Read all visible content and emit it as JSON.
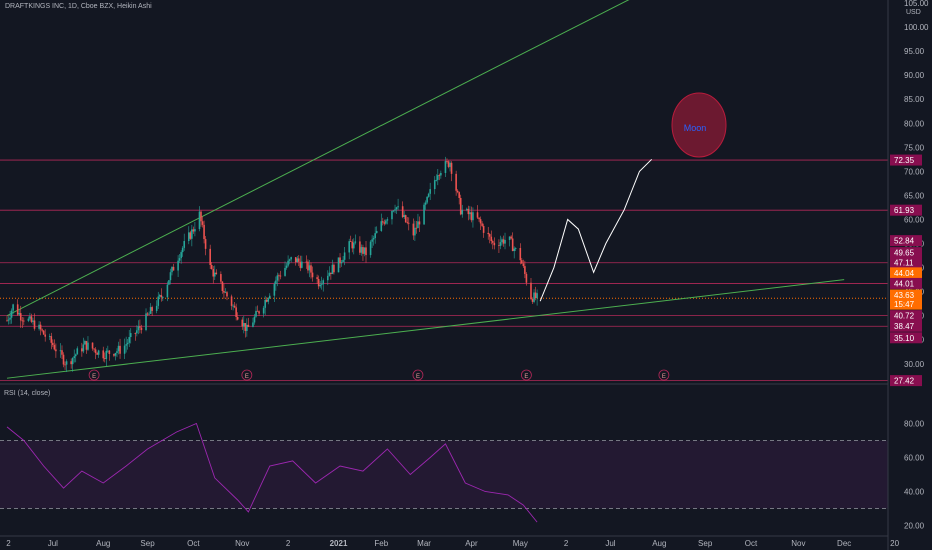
{
  "header": {
    "title": "DRAFTKINGS INC, 1D, Cboe BZX, Heikin Ashi",
    "currency": "USD",
    "rsi_title": "RSI (14, close)"
  },
  "colors": {
    "background": "#131722",
    "up": "#26a69a",
    "down": "#ef5350",
    "trendline": "#4caf50",
    "level_line": "#b22858",
    "rsi": "#9c27b0",
    "moon": "#b71c3c",
    "moon_text": "#2962ff",
    "current_price": "#ff6d00"
  },
  "annotation": {
    "moon_label": "Moon"
  },
  "earnings_markers": [
    "E",
    "E",
    "E",
    "E",
    "E"
  ],
  "chart_data": [
    {
      "type": "candlestick",
      "title": "DRAFTKINGS INC, 1D, Cboe BZX, Heikin Ashi",
      "y_axis": {
        "range": [
          26,
          105
        ],
        "ticks": [
          "105.00",
          "100.00",
          "95.00",
          "90.00",
          "85.00",
          "80.00",
          "75.00",
          "70.00",
          "65.00",
          "60.00",
          "55.00",
          "50.00",
          "45.00",
          "40.00",
          "35.00",
          "30.00"
        ]
      },
      "x_axis": {
        "range": [
          "2020-06-01",
          "2021-12-31"
        ],
        "ticks": [
          {
            "date": "2020-06-02",
            "label": "2"
          },
          {
            "date": "2020-07-01",
            "label": "Jul"
          },
          {
            "date": "2020-08-03",
            "label": "Aug"
          },
          {
            "date": "2020-09-01",
            "label": "Sep"
          },
          {
            "date": "2020-10-01",
            "label": "Oct"
          },
          {
            "date": "2020-11-02",
            "label": "Nov"
          },
          {
            "date": "2020-12-02",
            "label": "2"
          },
          {
            "date": "2021-01-04",
            "label": "2021"
          },
          {
            "date": "2021-02-01",
            "label": "Feb"
          },
          {
            "date": "2021-03-01",
            "label": "Mar"
          },
          {
            "date": "2021-04-01",
            "label": "Apr"
          },
          {
            "date": "2021-05-03",
            "label": "May"
          },
          {
            "date": "2021-06-02",
            "label": "2"
          },
          {
            "date": "2021-07-01",
            "label": "Jul"
          },
          {
            "date": "2021-08-02",
            "label": "Aug"
          },
          {
            "date": "2021-09-01",
            "label": "Sep"
          },
          {
            "date": "2021-10-01",
            "label": "Oct"
          },
          {
            "date": "2021-11-01",
            "label": "Nov"
          },
          {
            "date": "2021-12-01",
            "label": "Dec"
          },
          {
            "date": "2022-01-03",
            "label": "20"
          }
        ]
      },
      "price_path": [
        {
          "date": "2020-06-01",
          "price": 39
        },
        {
          "date": "2020-06-05",
          "price": 42
        },
        {
          "date": "2020-06-10",
          "price": 40
        },
        {
          "date": "2020-06-20",
          "price": 38
        },
        {
          "date": "2020-07-01",
          "price": 34
        },
        {
          "date": "2020-07-10",
          "price": 30
        },
        {
          "date": "2020-07-22",
          "price": 34
        },
        {
          "date": "2020-08-03",
          "price": 32
        },
        {
          "date": "2020-08-15",
          "price": 33
        },
        {
          "date": "2020-08-28",
          "price": 38
        },
        {
          "date": "2020-09-10",
          "price": 44
        },
        {
          "date": "2020-09-22",
          "price": 53
        },
        {
          "date": "2020-10-01",
          "price": 58
        },
        {
          "date": "2020-10-05",
          "price": 61
        },
        {
          "date": "2020-10-12",
          "price": 50
        },
        {
          "date": "2020-10-25",
          "price": 43
        },
        {
          "date": "2020-11-05",
          "price": 37
        },
        {
          "date": "2020-11-15",
          "price": 42
        },
        {
          "date": "2020-11-25",
          "price": 48
        },
        {
          "date": "2020-12-05",
          "price": 52
        },
        {
          "date": "2020-12-15",
          "price": 50
        },
        {
          "date": "2020-12-22",
          "price": 47
        },
        {
          "date": "2021-01-04",
          "price": 51
        },
        {
          "date": "2021-01-12",
          "price": 55
        },
        {
          "date": "2021-01-22",
          "price": 53
        },
        {
          "date": "2021-02-01",
          "price": 59
        },
        {
          "date": "2021-02-10",
          "price": 63
        },
        {
          "date": "2021-02-22",
          "price": 57
        },
        {
          "date": "2021-03-01",
          "price": 62
        },
        {
          "date": "2021-03-10",
          "price": 70
        },
        {
          "date": "2021-03-18",
          "price": 72
        },
        {
          "date": "2021-03-25",
          "price": 62
        },
        {
          "date": "2021-04-05",
          "price": 60
        },
        {
          "date": "2021-04-15",
          "price": 55
        },
        {
          "date": "2021-04-25",
          "price": 56
        },
        {
          "date": "2021-05-03",
          "price": 52
        },
        {
          "date": "2021-05-10",
          "price": 44
        },
        {
          "date": "2021-05-14",
          "price": 43.6
        }
      ],
      "rsi": {
        "title": "RSI (14, close)",
        "range": [
          15,
          95
        ],
        "ticks": [
          "80.00",
          "60.00",
          "40.00",
          "20.00"
        ],
        "upper_band": 70,
        "lower_band": 30,
        "values": [
          {
            "date": "2020-06-01",
            "value": 78
          },
          {
            "date": "2020-06-12",
            "value": 70
          },
          {
            "date": "2020-06-25",
            "value": 55
          },
          {
            "date": "2020-07-08",
            "value": 42
          },
          {
            "date": "2020-07-20",
            "value": 52
          },
          {
            "date": "2020-08-03",
            "value": 45
          },
          {
            "date": "2020-08-18",
            "value": 55
          },
          {
            "date": "2020-09-01",
            "value": 65
          },
          {
            "date": "2020-09-20",
            "value": 75
          },
          {
            "date": "2020-10-03",
            "value": 80
          },
          {
            "date": "2020-10-15",
            "value": 48
          },
          {
            "date": "2020-10-30",
            "value": 35
          },
          {
            "date": "2020-11-06",
            "value": 28
          },
          {
            "date": "2020-11-20",
            "value": 55
          },
          {
            "date": "2020-12-05",
            "value": 58
          },
          {
            "date": "2020-12-20",
            "value": 45
          },
          {
            "date": "2021-01-05",
            "value": 55
          },
          {
            "date": "2021-01-20",
            "value": 52
          },
          {
            "date": "2021-02-05",
            "value": 65
          },
          {
            "date": "2021-02-20",
            "value": 50
          },
          {
            "date": "2021-03-05",
            "value": 60
          },
          {
            "date": "2021-03-15",
            "value": 68
          },
          {
            "date": "2021-03-28",
            "value": 45
          },
          {
            "date": "2021-04-10",
            "value": 40
          },
          {
            "date": "2021-04-25",
            "value": 38
          },
          {
            "date": "2021-05-05",
            "value": 32
          },
          {
            "date": "2021-05-14",
            "value": 22
          }
        ]
      },
      "trendlines": [
        {
          "from": {
            "date": "2020-06-01",
            "price": 40
          },
          "to": {
            "date": "2021-07-15",
            "price": 106
          }
        },
        {
          "from": {
            "date": "2020-06-01",
            "price": 27
          },
          "to": {
            "date": "2021-12-01",
            "price": 47.5
          }
        }
      ],
      "projection": [
        {
          "date": "2021-05-16",
          "price": 43
        },
        {
          "date": "2021-05-25",
          "price": 50
        },
        {
          "date": "2021-06-03",
          "price": 60
        },
        {
          "date": "2021-06-10",
          "price": 58
        },
        {
          "date": "2021-06-20",
          "price": 49
        },
        {
          "date": "2021-06-28",
          "price": 55
        },
        {
          "date": "2021-07-10",
          "price": 62
        },
        {
          "date": "2021-07-20",
          "price": 70
        },
        {
          "date": "2021-07-28",
          "price": 72.5
        }
      ],
      "horizontal_levels": [
        {
          "label": "72.35",
          "price": 72.35,
          "line": true
        },
        {
          "label": "61.93",
          "price": 61.93,
          "line": true
        },
        {
          "label": "52.84",
          "price": 55.6,
          "line": false
        },
        {
          "label": "49.65",
          "price": 53.1,
          "line": false
        },
        {
          "label": "47.11",
          "price": 51.0,
          "line": true
        },
        {
          "label": "44.04",
          "price": 48.9,
          "line": false,
          "color": "current"
        },
        {
          "label": "44.01",
          "price": 46.7,
          "line": true
        },
        {
          "label": "43.63",
          "price": 44.3,
          "line": false,
          "color": "current"
        },
        {
          "label": "15:47",
          "price": 42.4,
          "line": false,
          "color": "current"
        },
        {
          "label": "40.72",
          "price": 40.0,
          "line": true
        },
        {
          "label": "38.47",
          "price": 37.8,
          "line": true
        },
        {
          "label": "35.10",
          "price": 35.4,
          "line": false
        },
        {
          "label": "27.42",
          "price": 26.5,
          "line": true
        }
      ],
      "current_price": 43.63,
      "earnings_dates": [
        "2020-07-28",
        "2020-11-05",
        "2021-02-25",
        "2021-05-07",
        "2021-08-05"
      ]
    }
  ]
}
